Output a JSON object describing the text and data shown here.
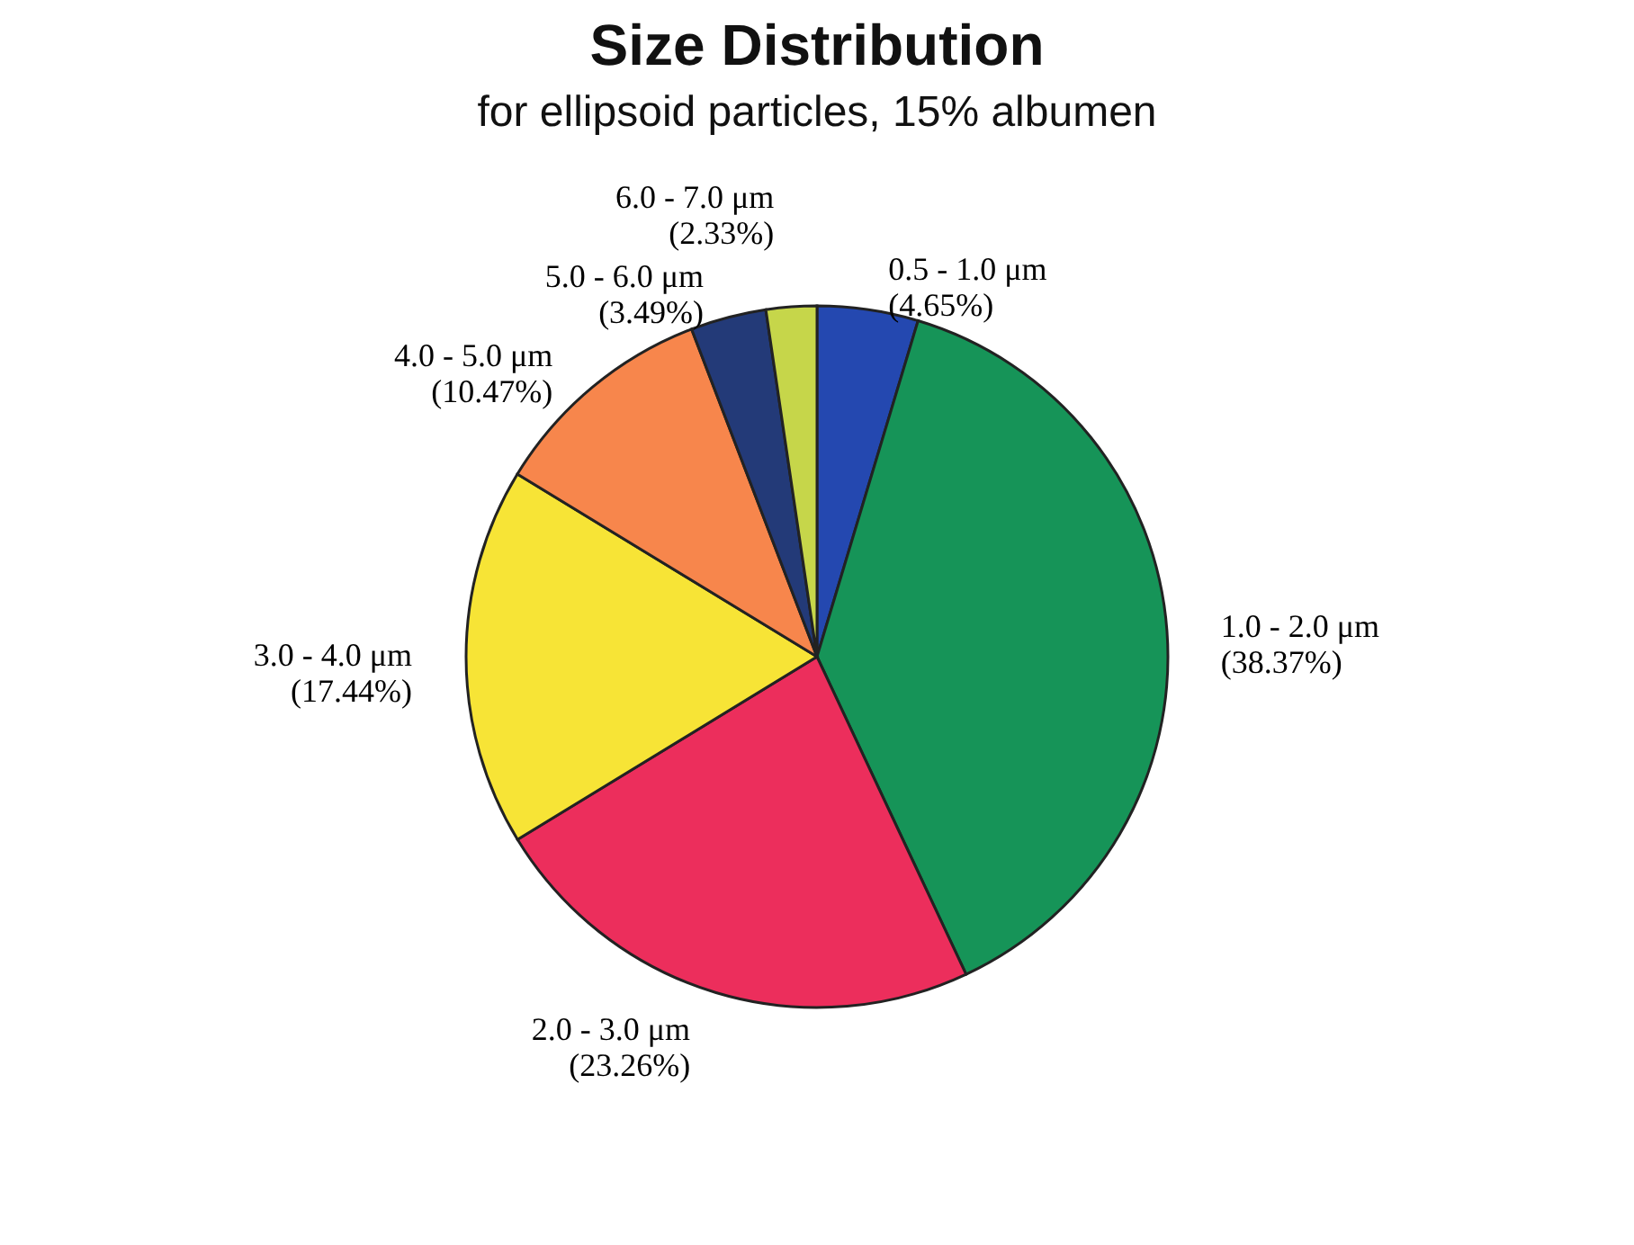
{
  "chart_data": {
    "type": "pie",
    "title": "Size Distribution",
    "subtitle": "for ellipsoid particles, 15% albumen",
    "categories": [
      "0.5 - 1.0 μm",
      "1.0 - 2.0 μm",
      "2.0 - 3.0 μm",
      "3.0 - 4.0 μm",
      "4.0 - 5.0 μm",
      "5.0 - 6.0 μm",
      "6.0 - 7.0 μm"
    ],
    "values": [
      4.65,
      38.37,
      23.26,
      17.44,
      10.47,
      3.49,
      2.33
    ],
    "colors": [
      "#2448b0",
      "#169458",
      "#ec2e5c",
      "#f7e436",
      "#f7864c",
      "#233a78",
      "#c6d64a"
    ],
    "value_labels": [
      "(4.65%)",
      "(38.37%)",
      "(23.26%)",
      "(17.44%)",
      "(10.47%)",
      "(3.49%)",
      "(2.33%)"
    ]
  }
}
